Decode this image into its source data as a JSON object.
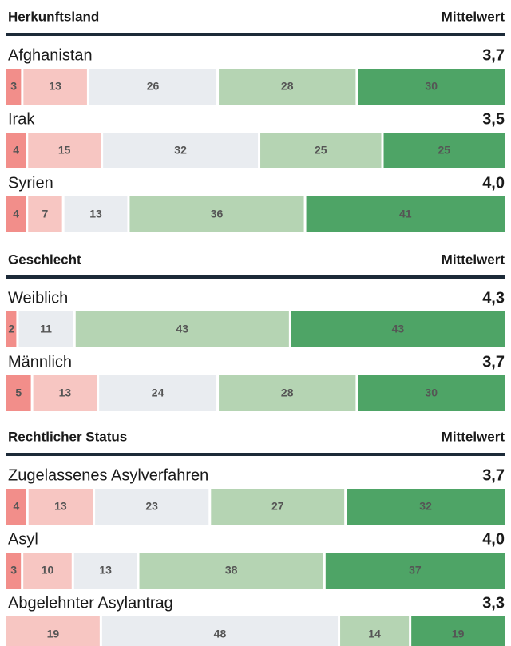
{
  "chart_data": [
    {
      "type": "stacked-bar",
      "title": "Herkunftsland",
      "mean_title": "Mittelwert",
      "categories": [
        "Afghanistan",
        "Irak",
        "Syrien"
      ],
      "means": [
        3.7,
        3.5,
        4.0
      ],
      "mean_labels": [
        "3,7",
        "3,5",
        "4,0"
      ],
      "segments": [
        [
          3,
          13,
          26,
          28,
          30
        ],
        [
          4,
          15,
          32,
          25,
          25
        ],
        [
          4,
          7,
          13,
          36,
          41
        ]
      ],
      "colors": [
        "#f28e8a",
        "#f7c6c2",
        "#e9ecf0",
        "#b5d4b3",
        "#4ea466"
      ]
    },
    {
      "type": "stacked-bar",
      "title": "Geschlecht",
      "mean_title": "Mittelwert",
      "categories": [
        "Weiblich",
        "Männlich"
      ],
      "means": [
        4.3,
        3.7
      ],
      "mean_labels": [
        "4,3",
        "3,7"
      ],
      "segments": [
        [
          2,
          null,
          11,
          43,
          43
        ],
        [
          5,
          13,
          24,
          28,
          30
        ]
      ],
      "colors": [
        "#f28e8a",
        "#f7c6c2",
        "#e9ecf0",
        "#b5d4b3",
        "#4ea466"
      ]
    },
    {
      "type": "stacked-bar",
      "title": "Rechtlicher Status",
      "mean_title": "Mittelwert",
      "categories": [
        "Zugelassenes Asylverfahren",
        "Asyl",
        "Abgelehnter Asylantrag"
      ],
      "means": [
        3.7,
        4.0,
        3.3
      ],
      "mean_labels": [
        "3,7",
        "4,0",
        "3,3"
      ],
      "segments": [
        [
          4,
          13,
          23,
          27,
          32
        ],
        [
          3,
          10,
          13,
          38,
          37
        ],
        [
          null,
          19,
          48,
          14,
          19
        ]
      ],
      "colors": [
        "#f28e8a",
        "#f7c6c2",
        "#e9ecf0",
        "#b5d4b3",
        "#4ea466"
      ]
    }
  ]
}
